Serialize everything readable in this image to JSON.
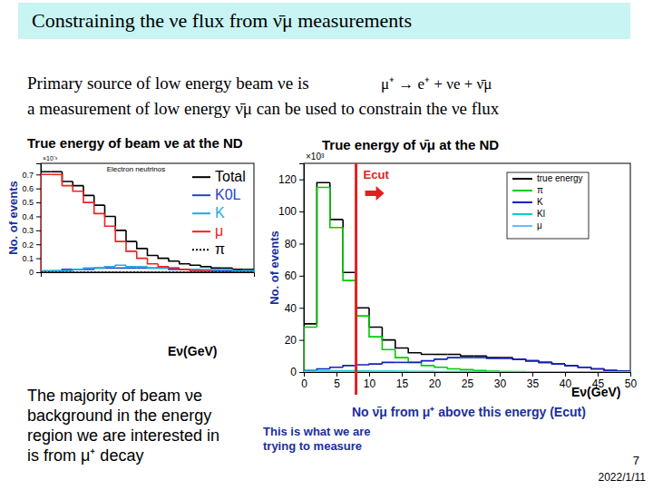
{
  "slide": {
    "title": "Constraining the νe flux from ν̄μ measurements",
    "lines": [
      "Primary source of low energy beam νe is",
      "a measurement of low energy ν̄μ can be used to constrain the νe flux"
    ],
    "formula": "μ⁺ → e⁺ + νe + ν̄μ",
    "note": [
      "The majority of beam νe",
      "background in the energy",
      "region we are interested in",
      "is from μ⁺ decay"
    ],
    "page": "7",
    "date": "2022/1/11"
  },
  "chart_data": [
    {
      "type": "histogram",
      "title": "Electron neutrinos",
      "subtitle": "True energy of beam νe at the ND",
      "x_label": "Eν(GeV)",
      "y_label": "No. of events",
      "annotations": [
        {
          "text": "×10⁻³"
        }
      ],
      "bins": [
        0,
        2,
        4,
        6,
        8,
        10,
        12,
        14,
        16,
        18,
        20,
        22,
        24,
        26,
        28,
        30,
        32,
        34,
        36,
        38,
        40
      ],
      "xlim": [
        0,
        40
      ],
      "ylim": [
        0,
        0.78
      ],
      "yticks": [
        0,
        0.1,
        0.2,
        0.3,
        0.4,
        0.5,
        0.6,
        0.7
      ],
      "tick_labels": "y",
      "grid": false,
      "legend": "top-right",
      "series": [
        {
          "name": "Total",
          "color": "#000000",
          "line_style": "solid",
          "values": [
            0.72,
            0.72,
            0.65,
            0.62,
            0.55,
            0.48,
            0.4,
            0.3,
            0.22,
            0.17,
            0.12,
            0.1,
            0.08,
            0.06,
            0.05,
            0.04,
            0.03,
            0.03,
            0.02,
            0.02
          ]
        },
        {
          "name": "K0L",
          "color": "#2244cc",
          "line_style": "solid",
          "values": [
            0.01,
            0.01,
            0.02,
            0.02,
            0.02,
            0.03,
            0.03,
            0.03,
            0.03,
            0.03,
            0.03,
            0.03,
            0.02,
            0.02,
            0.02,
            0.01,
            0.01,
            0.01,
            0.01,
            0.01
          ]
        },
        {
          "name": "K",
          "color": "#22aadd",
          "line_style": "solid",
          "values": [
            0.01,
            0.01,
            0.01,
            0.02,
            0.03,
            0.03,
            0.04,
            0.05,
            0.04,
            0.04,
            0.03,
            0.03,
            0.03,
            0.02,
            0.02,
            0.02,
            0.02,
            0.02,
            0.01,
            0.01
          ]
        },
        {
          "name": "μ",
          "color": "#ee2222",
          "line_style": "solid",
          "values": [
            0.7,
            0.7,
            0.62,
            0.58,
            0.5,
            0.42,
            0.33,
            0.22,
            0.15,
            0.1,
            0.06,
            0.04,
            0.03,
            0.02,
            0.01,
            0.01,
            0,
            0,
            0,
            0
          ]
        },
        {
          "name": "π",
          "color": "#000000",
          "line_style": "dotted",
          "values": [
            0,
            0,
            0,
            0,
            0,
            0,
            0,
            0,
            0,
            0,
            0,
            0,
            0,
            0,
            0,
            0,
            0,
            0,
            0,
            0
          ]
        }
      ]
    },
    {
      "type": "histogram",
      "subtitle": "True energy of ν̄μ at the ND",
      "x_label": "Eν(GeV)",
      "y_label": "No. of events",
      "annotations": [
        {
          "text": "Ecut",
          "x": 8
        },
        {
          "text": "No ν̄μ from μ⁺ above this energy (Ecut)"
        },
        {
          "text": "This is what we are\ntrying to measure"
        },
        {
          "text": "×10³"
        }
      ],
      "bins": [
        0,
        2,
        4,
        6,
        8,
        10,
        12,
        14,
        16,
        18,
        20,
        22,
        24,
        26,
        28,
        30,
        32,
        34,
        36,
        38,
        40,
        42,
        44,
        46,
        48,
        50
      ],
      "xlim": [
        0,
        50
      ],
      "xticks": [
        0,
        5,
        10,
        15,
        20,
        25,
        30,
        35,
        40,
        45,
        50
      ],
      "ylim": [
        0,
        130
      ],
      "yticks": [
        0,
        20,
        40,
        60,
        80,
        100,
        120
      ],
      "grid": false,
      "legend": "top-right",
      "series": [
        {
          "name": "true energy",
          "color": "#000000",
          "line_style": "solid",
          "values": [
            30,
            118,
            95,
            62,
            40,
            28,
            20,
            15,
            12,
            11,
            11,
            11,
            10,
            10,
            9,
            9,
            8,
            7,
            6,
            5,
            4,
            3,
            2,
            1,
            0.5
          ]
        },
        {
          "name": "π",
          "color": "#00cc00",
          "line_style": "solid",
          "values": [
            28,
            115,
            90,
            57,
            35,
            22,
            14,
            9,
            6,
            4,
            3,
            2,
            1.5,
            1,
            0.5,
            0.3,
            0.2,
            0.1,
            0,
            0,
            0,
            0,
            0,
            0,
            0
          ]
        },
        {
          "name": "K",
          "color": "#1122bb",
          "line_style": "solid",
          "values": [
            1,
            2,
            3,
            4,
            4.5,
            5,
            6,
            6,
            6,
            7,
            8,
            9,
            9,
            9,
            8.5,
            8.5,
            8,
            7,
            6,
            5,
            4,
            3,
            2,
            1,
            0.5
          ]
        },
        {
          "name": "Kl",
          "color": "#00cccc",
          "line_style": "solid",
          "values": [
            0.5,
            0.8,
            0.8,
            0.8,
            0.7,
            0.6,
            0.5,
            0.5,
            0.4,
            0.4,
            0.3,
            0.3,
            0.3,
            0.2,
            0.2,
            0.2,
            0.1,
            0.1,
            0.1,
            0.1,
            0,
            0,
            0,
            0,
            0
          ]
        },
        {
          "name": "μ",
          "color": "#66bbff",
          "line_style": "solid",
          "values": [
            0.3,
            0.4,
            0.4,
            0.3,
            0.2,
            0.2,
            0.1,
            0.1,
            0.1,
            0,
            0,
            0,
            0,
            0,
            0,
            0,
            0,
            0,
            0,
            0,
            0,
            0,
            0,
            0,
            0
          ]
        }
      ]
    }
  ]
}
